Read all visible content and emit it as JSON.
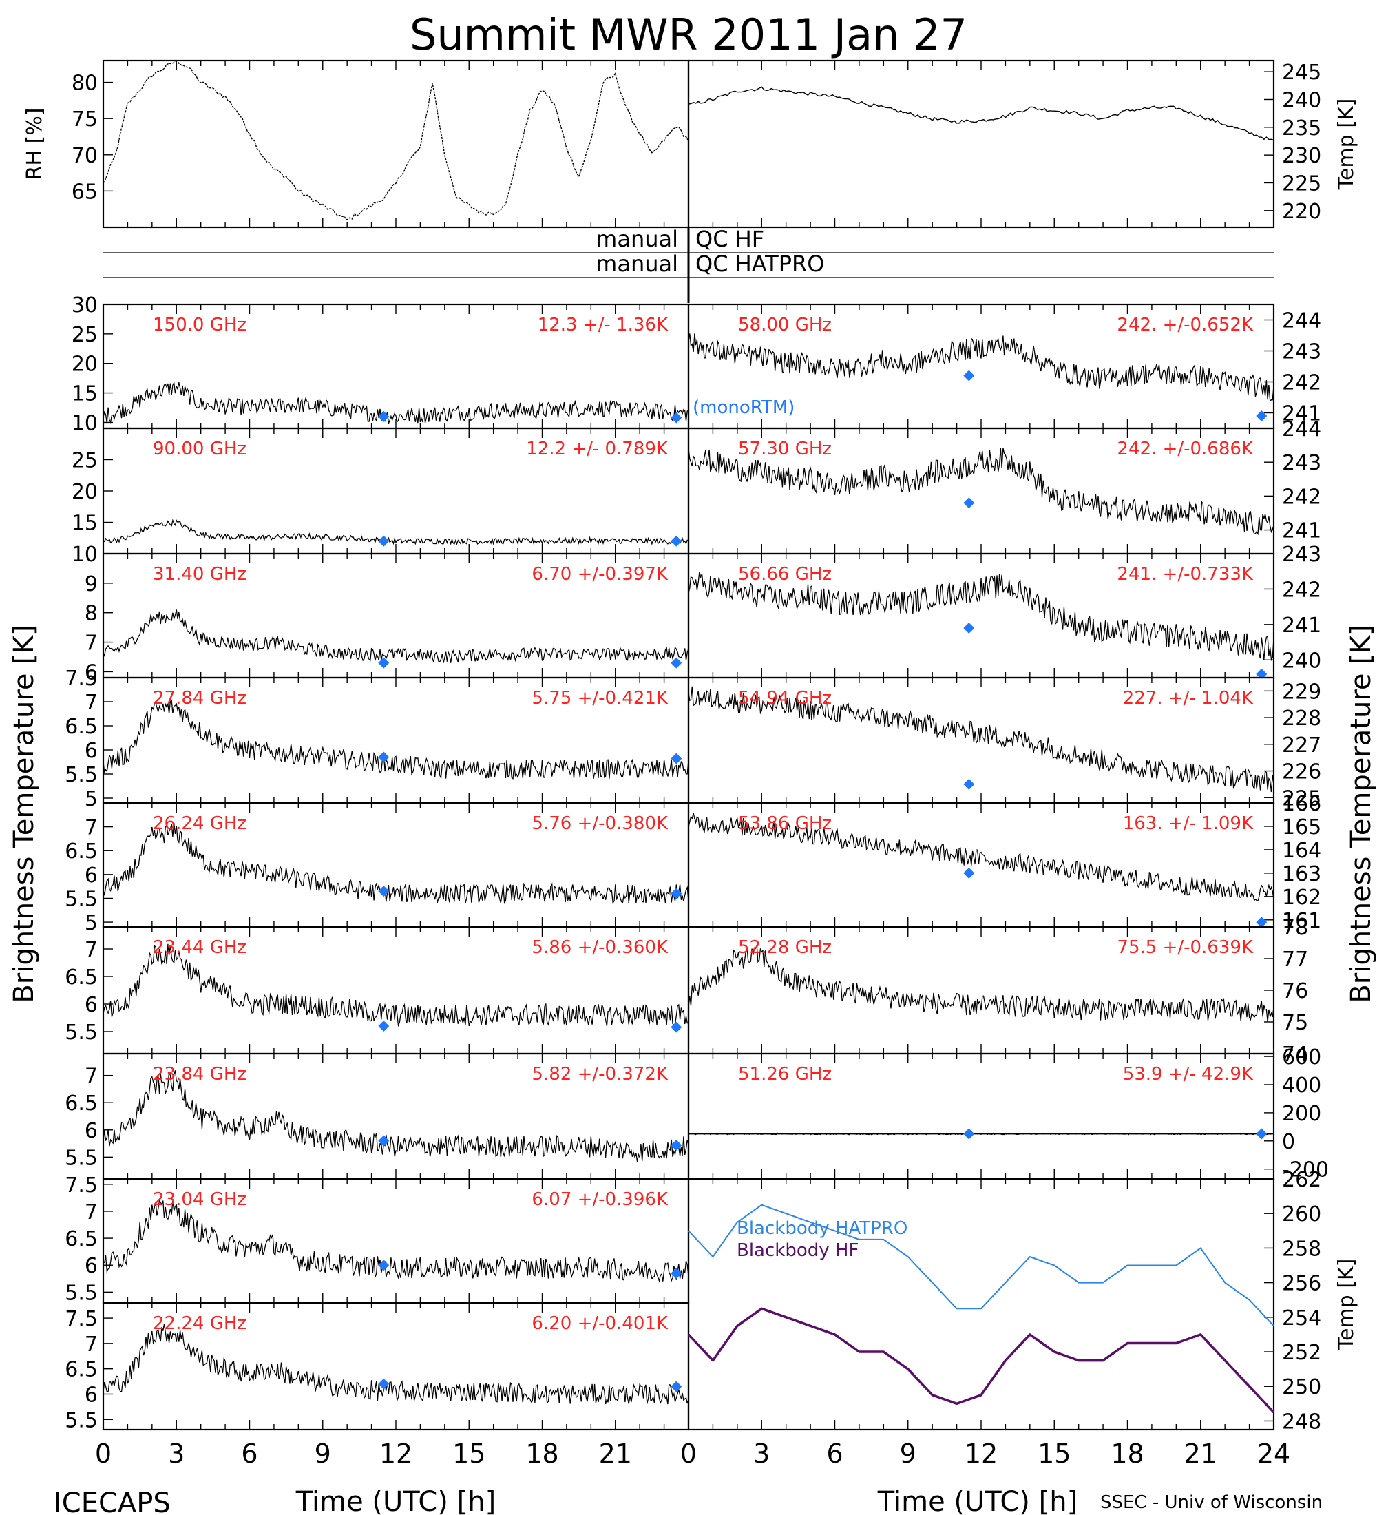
{
  "title": "Summit MWR 2011 Jan 27",
  "footer": {
    "left": "ICECAPS",
    "right": "SSEC - Univ of Wisconsin"
  },
  "x_axis": {
    "label": "Time (UTC) [h]",
    "range": [
      0,
      24
    ],
    "ticks": [
      "0",
      "3",
      "6",
      "9",
      "12",
      "15",
      "18",
      "21",
      "24"
    ],
    "left_ticks": [
      "0",
      "3",
      "6",
      "9",
      "12",
      "15",
      "18",
      "21"
    ]
  },
  "y_axis_labels": {
    "left": "Brightness Temperature [K]",
    "right": "Brightness Temperature [K]"
  },
  "qc": {
    "label_left": "manual",
    "row1": "QC HF",
    "row2": "QC HATPRO"
  },
  "colors": {
    "trace": "#000000",
    "model": "#1e78ff",
    "label": "#ff2020",
    "hatpro": "#2a86e8",
    "hf": "#5a0e6a"
  },
  "legend_model": "(monoRTM)",
  "chart_data": [
    {
      "id": "rh",
      "type": "line",
      "ylabel": "RH [%]",
      "ylim": [
        60,
        83
      ],
      "yticks": [
        65,
        70,
        75,
        80
      ],
      "x": [
        0,
        0.5,
        1,
        1.5,
        2,
        2.5,
        3,
        3.5,
        4,
        4.5,
        5,
        5.5,
        6,
        6.5,
        7,
        7.5,
        8,
        8.5,
        9,
        9.5,
        10,
        10.5,
        11,
        11.5,
        12,
        12.5,
        13,
        13.5,
        14,
        14.5,
        15,
        15.5,
        16,
        16.5,
        17,
        17.5,
        18,
        18.5,
        19,
        19.5,
        20,
        20.5,
        21,
        21.5,
        22,
        22.5,
        23,
        23.5,
        24
      ],
      "values": [
        66,
        70,
        77,
        79,
        81,
        82,
        83,
        82,
        80,
        79,
        78,
        76,
        73,
        70,
        68,
        67,
        65,
        64,
        63,
        62,
        61,
        62,
        63,
        64,
        66,
        69,
        71,
        80,
        70,
        64,
        63,
        62,
        62,
        63,
        70,
        76,
        79,
        77,
        71,
        67,
        72,
        80,
        81,
        76,
        73,
        70,
        72,
        74,
        72
      ]
    },
    {
      "id": "temp",
      "type": "line",
      "ylabel": "Temp [K]",
      "ylim": [
        217,
        247
      ],
      "yticks": [
        220,
        225,
        230,
        235,
        240,
        245
      ],
      "x": [
        0,
        1,
        2,
        3,
        4,
        5,
        6,
        7,
        8,
        9,
        10,
        11,
        12,
        13,
        14,
        15,
        16,
        17,
        18,
        19,
        20,
        21,
        22,
        23,
        24
      ],
      "values": [
        239,
        240,
        241.5,
        242,
        241.5,
        241,
        240.5,
        239.5,
        238.5,
        237.5,
        236.5,
        236,
        236.2,
        237,
        238.5,
        238,
        237.5,
        236.5,
        238,
        238.5,
        238.5,
        237,
        235.5,
        234,
        232.5
      ]
    },
    {
      "id": "ch150",
      "type": "line",
      "freq": "150.0 GHz",
      "stat": "12.3 +/-  1.36K",
      "ylim": [
        9,
        30
      ],
      "yticks": [
        10,
        15,
        20,
        25,
        30
      ],
      "noise": 1.4,
      "x": [
        0,
        1,
        2,
        3,
        4,
        6,
        8,
        10,
        12,
        14,
        16,
        18,
        20,
        22,
        24
      ],
      "values": [
        11,
        12.5,
        15,
        16,
        13,
        12.5,
        13,
        12,
        11,
        11.5,
        12,
        12,
        12.5,
        12,
        11.5
      ],
      "model": [
        [
          11.5,
          11
        ],
        [
          23.5,
          10.8
        ]
      ]
    },
    {
      "id": "ch5800",
      "type": "line",
      "freq": "58.00 GHz",
      "stat": "242. +/-0.652K",
      "ylim": [
        240.5,
        244.5
      ],
      "yticks": [
        241,
        242,
        243,
        244
      ],
      "noise": 0.35,
      "x": [
        0,
        1,
        2,
        3,
        4,
        5,
        6,
        7,
        8,
        9,
        10,
        11,
        12,
        13,
        14,
        15,
        16,
        17,
        18,
        19,
        20,
        21,
        22,
        23,
        24
      ],
      "values": [
        243.3,
        243,
        242.9,
        242.8,
        242.6,
        242.6,
        242.4,
        242.5,
        242.7,
        242.5,
        242.8,
        243,
        243.1,
        243.2,
        242.9,
        242.4,
        242.2,
        242.1,
        242.2,
        242.3,
        242.2,
        242.2,
        242,
        241.9,
        241.7
      ],
      "model": [
        [
          11.5,
          242.2
        ],
        [
          23.5,
          240.9
        ]
      ]
    },
    {
      "id": "ch90",
      "type": "line",
      "freq": "90.00 GHz",
      "stat": "12.2 +/- 0.789K",
      "ylim": [
        10,
        30
      ],
      "yticks": [
        15,
        20,
        25
      ],
      "noise": 0.45,
      "x": [
        0,
        1,
        2,
        3,
        4,
        6,
        8,
        10,
        12,
        14,
        16,
        18,
        20,
        22,
        24
      ],
      "values": [
        12,
        12.5,
        14.5,
        15,
        13,
        12.5,
        12.8,
        12.5,
        12,
        12,
        12,
        12,
        12.1,
        12,
        12
      ],
      "model": [
        [
          11.5,
          12
        ],
        [
          23.5,
          12
        ]
      ]
    },
    {
      "id": "ch5730",
      "type": "line",
      "freq": "57.30 GHz",
      "stat": "242. +/-0.686K",
      "ylim": [
        240.3,
        244
      ],
      "yticks": [
        241,
        242,
        243,
        244
      ],
      "noise": 0.35,
      "x": [
        0,
        1,
        2,
        3,
        4,
        5,
        6,
        7,
        8,
        9,
        10,
        11,
        12,
        13,
        14,
        15,
        16,
        17,
        18,
        19,
        20,
        21,
        22,
        23,
        24
      ],
      "values": [
        243.2,
        243,
        242.8,
        242.7,
        242.5,
        242.5,
        242.3,
        242.4,
        242.6,
        242.4,
        242.7,
        242.8,
        243,
        243.1,
        242.7,
        241.9,
        241.8,
        241.7,
        241.6,
        241.6,
        241.5,
        241.5,
        241.3,
        241.2,
        241.1
      ],
      "model": [
        [
          11.5,
          241.8
        ]
      ]
    },
    {
      "id": "ch3140",
      "type": "line",
      "freq": "31.40 GHz",
      "stat": "6.70 +/-0.397K",
      "ylim": [
        5.8,
        10
      ],
      "yticks": [
        6,
        7,
        8,
        9,
        10
      ],
      "noise": 0.22,
      "x": [
        0,
        1,
        2,
        3,
        4,
        5,
        6,
        7,
        8,
        10,
        12,
        14,
        16,
        18,
        20,
        22,
        24
      ],
      "values": [
        6.6,
        6.9,
        7.8,
        7.9,
        7.1,
        7,
        6.9,
        7,
        6.8,
        6.6,
        6.6,
        6.5,
        6.6,
        6.6,
        6.6,
        6.6,
        6.6
      ],
      "model": [
        [
          11.5,
          6.3
        ],
        [
          23.5,
          6.3
        ]
      ]
    },
    {
      "id": "ch5666",
      "type": "line",
      "freq": "56.66 GHz",
      "stat": "241. +/-0.733K",
      "ylim": [
        239.5,
        243
      ],
      "yticks": [
        240,
        241,
        242,
        243
      ],
      "noise": 0.35,
      "x": [
        0,
        1,
        2,
        3,
        4,
        5,
        6,
        7,
        8,
        9,
        10,
        11,
        12,
        13,
        14,
        15,
        16,
        17,
        18,
        19,
        20,
        21,
        22,
        23,
        24
      ],
      "values": [
        242.2,
        242.1,
        241.9,
        241.8,
        241.7,
        241.8,
        241.6,
        241.6,
        241.7,
        241.6,
        241.8,
        241.9,
        242,
        242.1,
        241.8,
        241.3,
        241,
        240.8,
        240.8,
        240.7,
        240.7,
        240.6,
        240.5,
        240.4,
        240.3
      ],
      "model": [
        [
          11.5,
          240.9
        ],
        [
          23.5,
          239.6
        ]
      ]
    },
    {
      "id": "ch2784",
      "type": "line",
      "freq": "27.84 GHz",
      "stat": "5.75 +/-0.421K",
      "ylim": [
        4.9,
        7.5
      ],
      "yticks": [
        5.0,
        5.5,
        6.0,
        6.5,
        7.0,
        7.5
      ],
      "noise": 0.2,
      "x": [
        0,
        1,
        2,
        3,
        4,
        5,
        6,
        8,
        10,
        12,
        14,
        16,
        18,
        20,
        22,
        24
      ],
      "values": [
        5.7,
        5.9,
        6.8,
        6.9,
        6.4,
        6.1,
        6.0,
        5.9,
        5.8,
        5.7,
        5.6,
        5.6,
        5.6,
        5.6,
        5.6,
        5.6
      ],
      "model": [
        [
          11.5,
          5.85
        ],
        [
          23.5,
          5.82
        ]
      ]
    },
    {
      "id": "ch5494",
      "type": "line",
      "freq": "54.94 GHz",
      "stat": "227. +/- 1.04K",
      "ylim": [
        224.8,
        229.5
      ],
      "yticks": [
        225,
        226,
        227,
        228,
        229
      ],
      "noise": 0.4,
      "x": [
        0,
        2,
        4,
        6,
        8,
        10,
        12,
        14,
        16,
        18,
        20,
        22,
        24
      ],
      "values": [
        228.8,
        228.6,
        228.4,
        228.2,
        228,
        227.7,
        227.4,
        227.1,
        226.6,
        226.2,
        226,
        225.8,
        225.6
      ],
      "model": [
        [
          11.5,
          225.5
        ]
      ]
    },
    {
      "id": "ch2624",
      "type": "line",
      "freq": "26.24 GHz",
      "stat": "5.76 +/-0.380K",
      "ylim": [
        4.9,
        7.5
      ],
      "yticks": [
        5.0,
        5.5,
        6.0,
        6.5,
        7.0
      ],
      "noise": 0.2,
      "x": [
        0,
        1,
        2,
        3,
        4,
        5,
        6,
        8,
        10,
        12,
        14,
        16,
        18,
        20,
        22,
        24
      ],
      "values": [
        5.7,
        5.9,
        6.8,
        6.9,
        6.3,
        6.1,
        6.1,
        5.9,
        5.7,
        5.6,
        5.6,
        5.6,
        5.6,
        5.6,
        5.6,
        5.6
      ],
      "model": [
        [
          11.5,
          5.65
        ],
        [
          23.5,
          5.6
        ]
      ]
    },
    {
      "id": "ch5386",
      "type": "line",
      "freq": "53.86 GHz",
      "stat": "163. +/- 1.09K",
      "ylim": [
        160.7,
        166
      ],
      "yticks": [
        161,
        162,
        163,
        164,
        165,
        166
      ],
      "noise": 0.4,
      "x": [
        0,
        2,
        4,
        6,
        8,
        10,
        12,
        14,
        16,
        18,
        20,
        22,
        24
      ],
      "values": [
        165.2,
        165,
        164.8,
        164.5,
        164.2,
        163.9,
        163.6,
        163.4,
        163.1,
        162.8,
        162.5,
        162.3,
        162.1
      ],
      "model": [
        [
          11.5,
          163
        ],
        [
          23.5,
          160.9
        ]
      ]
    },
    {
      "id": "ch2344",
      "type": "line",
      "freq": "23.44 GHz",
      "stat": "5.86 +/-0.360K",
      "ylim": [
        5.1,
        7.4
      ],
      "yticks": [
        5.5,
        6.0,
        6.5,
        7.0
      ],
      "noise": 0.2,
      "x": [
        0,
        1,
        2,
        3,
        4,
        5,
        6,
        8,
        10,
        12,
        14,
        16,
        18,
        20,
        22,
        24
      ],
      "values": [
        5.8,
        6.0,
        6.9,
        6.9,
        6.4,
        6.2,
        6.0,
        6.0,
        5.9,
        5.8,
        5.8,
        5.8,
        5.8,
        5.8,
        5.8,
        5.8
      ],
      "model": [
        [
          11.5,
          5.6
        ],
        [
          23.5,
          5.58
        ]
      ]
    },
    {
      "id": "ch5228",
      "type": "line",
      "freq": "52.28 GHz",
      "stat": "75.5 +/-0.639K",
      "ylim": [
        74,
        78
      ],
      "yticks": [
        74,
        75,
        76,
        77,
        78
      ],
      "noise": 0.35,
      "x": [
        0,
        1,
        2,
        3,
        4,
        6,
        8,
        10,
        12,
        14,
        16,
        18,
        20,
        22,
        24
      ],
      "values": [
        75.8,
        76.4,
        77,
        77.1,
        76.3,
        76,
        75.8,
        75.6,
        75.5,
        75.5,
        75.4,
        75.4,
        75.4,
        75.4,
        75.3
      ]
    },
    {
      "id": "ch2384",
      "type": "line",
      "freq": "23.84 GHz",
      "stat": "5.82 +/-0.372K",
      "ylim": [
        5.1,
        7.4
      ],
      "yticks": [
        5.5,
        6.0,
        6.5,
        7.0
      ],
      "noise": 0.2,
      "x": [
        0,
        1,
        2,
        3,
        4,
        5,
        6,
        7,
        8,
        10,
        12,
        14,
        16,
        18,
        20,
        22,
        24
      ],
      "values": [
        5.8,
        6.0,
        6.8,
        6.9,
        6.2,
        6.1,
        6.0,
        6.2,
        5.9,
        5.8,
        5.7,
        5.7,
        5.7,
        5.7,
        5.7,
        5.6,
        5.7
      ],
      "model": [
        [
          11.5,
          5.8
        ],
        [
          23.5,
          5.72
        ]
      ]
    },
    {
      "id": "ch5126",
      "type": "line",
      "freq": "51.26 GHz",
      "stat": "53.9 +/- 42.9K",
      "ylim": [
        -270,
        620
      ],
      "yticks": [
        -200,
        0,
        200,
        400,
        600
      ],
      "noise": 5,
      "x": [
        0,
        24
      ],
      "values": [
        50,
        50
      ],
      "model": [
        [
          11.5,
          50
        ],
        [
          23.5,
          50
        ]
      ]
    },
    {
      "id": "ch2304",
      "type": "line",
      "freq": "23.04 GHz",
      "stat": "6.07 +/-0.396K",
      "ylim": [
        5.3,
        7.6
      ],
      "yticks": [
        5.5,
        6.0,
        6.5,
        7.0,
        7.5
      ],
      "noise": 0.2,
      "x": [
        0,
        1,
        2,
        3,
        4,
        5,
        6,
        7,
        8,
        10,
        12,
        14,
        16,
        18,
        20,
        22,
        24
      ],
      "values": [
        6.0,
        6.2,
        7.0,
        7.0,
        6.6,
        6.4,
        6.3,
        6.4,
        6.1,
        6.0,
        5.95,
        5.95,
        5.95,
        5.95,
        5.95,
        5.9,
        5.9
      ],
      "model": [
        [
          11.5,
          6.0
        ],
        [
          23.5,
          5.85
        ]
      ]
    },
    {
      "id": "bb",
      "type": "line",
      "ylabel": "Temp [K]",
      "ylim": [
        247.5,
        262
      ],
      "yticks": [
        248,
        250,
        252,
        254,
        256,
        258,
        260,
        262
      ],
      "x": [
        0,
        1,
        2,
        3,
        4,
        5,
        6,
        7,
        8,
        9,
        10,
        11,
        12,
        13,
        14,
        15,
        16,
        17,
        18,
        19,
        20,
        21,
        22,
        23,
        24
      ],
      "series": [
        {
          "name": "Blackbody HATPRO",
          "values": [
            259,
            257.5,
            259.5,
            260.5,
            260,
            259.5,
            259,
            258.5,
            258.5,
            257.5,
            256,
            254.5,
            254.5,
            256,
            257.5,
            257,
            256,
            256,
            257,
            257,
            257,
            258,
            256,
            255,
            253.5
          ]
        },
        {
          "name": "Blackbody HF",
          "values": [
            253,
            251.5,
            253.5,
            254.5,
            254,
            253.5,
            253,
            252,
            252,
            251,
            249.5,
            249,
            249.5,
            251.5,
            253,
            252,
            251.5,
            251.5,
            252.5,
            252.5,
            252.5,
            253,
            251.5,
            250,
            248.5
          ]
        }
      ]
    },
    {
      "id": "ch2224",
      "type": "line",
      "freq": "22.24 GHz",
      "stat": "6.20 +/-0.401K",
      "ylim": [
        5.3,
        7.8
      ],
      "yticks": [
        5.5,
        6.0,
        6.5,
        7.0,
        7.5
      ],
      "noise": 0.2,
      "x": [
        0,
        1,
        2,
        3,
        4,
        5,
        6,
        7,
        8,
        10,
        12,
        14,
        16,
        18,
        20,
        22,
        24
      ],
      "values": [
        6.1,
        6.3,
        7.2,
        7.2,
        6.7,
        6.5,
        6.4,
        6.5,
        6.3,
        6.1,
        6.05,
        6.05,
        6.05,
        6.0,
        6.0,
        6.0,
        6.0
      ],
      "model": [
        [
          11.5,
          6.2
        ],
        [
          23.5,
          6.15
        ]
      ]
    }
  ]
}
